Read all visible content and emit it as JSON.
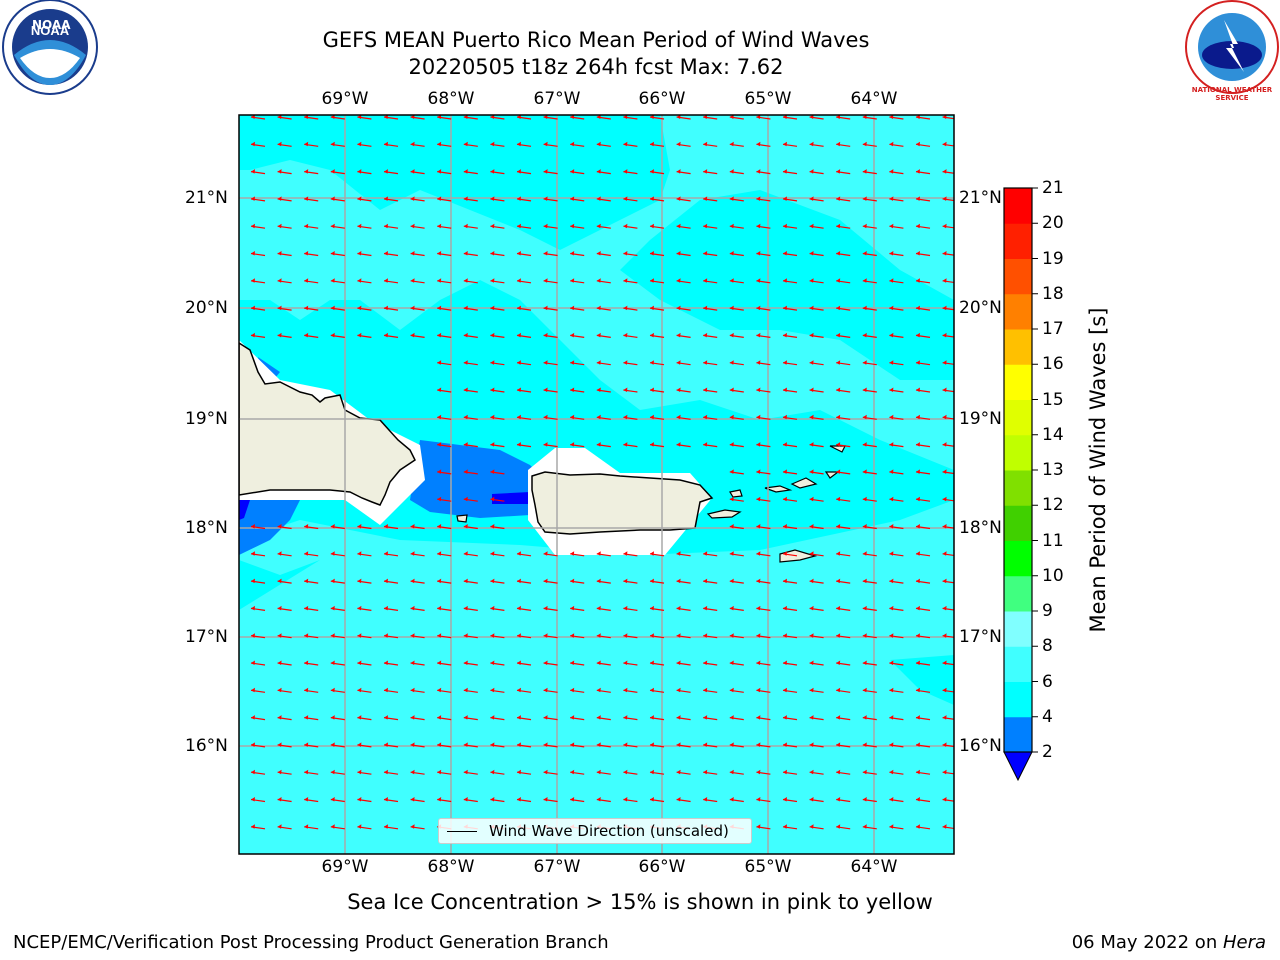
{
  "header": {
    "title_line1": "GEFS MEAN Puerto Rico Mean Period of Wind Waves",
    "title_line2": "20220505 t18z 264h fcst   Max: 7.62"
  },
  "logos": {
    "left": "NOAA",
    "right": "NATIONAL WEATHER SERVICE"
  },
  "map": {
    "lon_labels": [
      "69°W",
      "68°W",
      "67°W",
      "66°W",
      "65°W",
      "64°W"
    ],
    "lat_labels": [
      "21°N",
      "20°N",
      "19°N",
      "18°N",
      "17°N",
      "16°N"
    ],
    "background_color": "#00ffff",
    "field_color": "#40ffff",
    "band_color": "#0080ff",
    "deep_color": "#0000ff",
    "land_color": "#efefdf",
    "arrow_color": "#ff0000",
    "arrow_direction": "toward west-southwest"
  },
  "legend": {
    "label": "Wind Wave Direction (unscaled)"
  },
  "colorbar": {
    "title": "Mean Period of Wind Waves [s]",
    "ticks": [
      "2",
      "4",
      "6",
      "8",
      "9",
      "10",
      "11",
      "12",
      "13",
      "14",
      "15",
      "16",
      "17",
      "18",
      "19",
      "20",
      "21"
    ],
    "colors": [
      "#0000ff",
      "#0080ff",
      "#00ffff",
      "#40ffff",
      "#80ffff",
      "#40ff80",
      "#00ff00",
      "#40d000",
      "#80e000",
      "#c0ff00",
      "#e0ff00",
      "#ffff00",
      "#ffc000",
      "#ff8000",
      "#ff5000",
      "#ff2000",
      "#ff0000"
    ]
  },
  "caption": "Sea Ice Concentration > 15% is shown in pink to yellow",
  "footer": {
    "left": "NCEP/EMC/Verification Post Processing Product Generation Branch",
    "right_date": "06 May 2022 on ",
    "right_host": "Hera"
  }
}
